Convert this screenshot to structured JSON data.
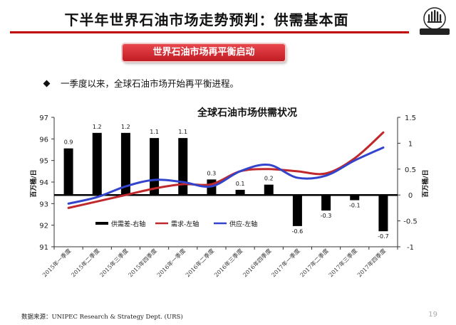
{
  "header": {
    "title": "下半年世界石油市场走势预判：供需基本面",
    "banner": "世界石油市场再平衡启动",
    "bullet": "一季度以来，全球石油市场开始再平衡进程。"
  },
  "footer": {
    "source": "数据来源：UNIPEC Research & Strategy Dept. (URS)",
    "page": "19"
  },
  "colors": {
    "accent": "#c00000",
    "demand": "#c0282c",
    "supply": "#3344cc",
    "bar": "#000000"
  },
  "chart_data": {
    "type": "bar+line",
    "title": "全球石油市场供需状况",
    "categories": [
      "2015年一季度",
      "2015年二季度",
      "2015年三季度",
      "2015年四季度",
      "2016年一季度",
      "2016年二季度",
      "2016年三季度",
      "2016年四季度",
      "2017年一季度",
      "2017年二季度",
      "2017年三季度",
      "2017年四季度"
    ],
    "y_left": {
      "label": "百万桶/日",
      "min": 91,
      "max": 97,
      "ticks": [
        "91",
        "92",
        "93",
        "94",
        "95",
        "96",
        "97"
      ]
    },
    "y_right": {
      "label": "百万桶/日",
      "min": -1,
      "max": 1.5,
      "ticks": [
        "-1",
        "-0.5",
        "0",
        "0.5",
        "1",
        "1.5"
      ]
    },
    "bars": {
      "name": "供需差-右轴",
      "axis": "right",
      "values": [
        0.9,
        1.2,
        1.2,
        1.1,
        1.1,
        0.3,
        0.1,
        0.2,
        -0.6,
        -0.3,
        -0.1,
        -0.7
      ],
      "labels": [
        "0.9",
        "1.2",
        "1.2",
        "1.1",
        "1.1",
        "0.3",
        "0.1",
        "0.2",
        "-0.6",
        "-0.3",
        "-0.1",
        "-0.7"
      ]
    },
    "series": [
      {
        "name": "需求-左轴",
        "axis": "left",
        "values": [
          92.8,
          93.1,
          93.4,
          93.7,
          93.9,
          93.9,
          94.5,
          94.6,
          94.5,
          94.4,
          95.1,
          96.3
        ]
      },
      {
        "name": "供应-左轴",
        "axis": "left",
        "values": [
          93.0,
          93.3,
          93.8,
          94.1,
          94.0,
          93.8,
          94.5,
          94.8,
          94.2,
          94.3,
          95.0,
          95.6
        ]
      }
    ],
    "legend": [
      "供需差-右轴",
      "需求-左轴",
      "供应-左轴"
    ]
  }
}
